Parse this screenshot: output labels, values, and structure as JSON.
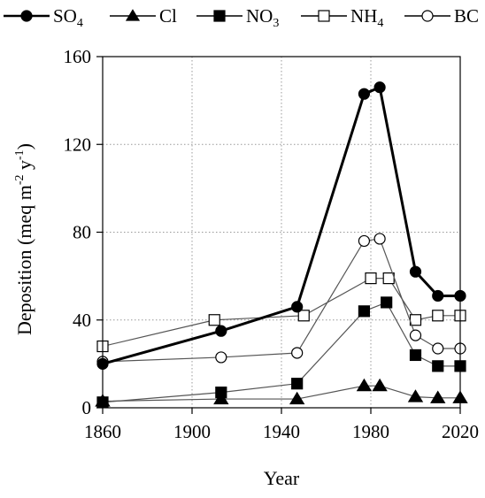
{
  "chart_data": {
    "type": "line",
    "xlabel": "Year",
    "ylabel": {
      "parts": [
        {
          "text": "Deposition (meq m",
          "style": "normal"
        },
        {
          "text": "-2",
          "style": "sup"
        },
        {
          "text": " y",
          "style": "normal"
        },
        {
          "text": "-1",
          "style": "sup"
        },
        {
          "text": ")",
          "style": "normal"
        }
      ]
    },
    "xlim": [
      1860,
      2020
    ],
    "ylim": [
      0,
      160
    ],
    "xticks": [
      1860,
      1900,
      1940,
      1980,
      2020
    ],
    "yticks": [
      0,
      40,
      80,
      120,
      160
    ],
    "grid": true,
    "legend_position": "top",
    "series": [
      {
        "name": "SO4",
        "name_parts": [
          {
            "text": "SO",
            "style": "normal"
          },
          {
            "text": "4",
            "style": "sub"
          }
        ],
        "marker": "circle",
        "filled": true,
        "line_width": 3,
        "line_color": "#000000",
        "x": [
          1860,
          1913,
          1947,
          1977,
          1984,
          2000,
          2010,
          2020
        ],
        "values": [
          20,
          35,
          46,
          143,
          146,
          62,
          51,
          51
        ]
      },
      {
        "name": "Cl",
        "name_parts": [
          {
            "text": "Cl",
            "style": "normal"
          }
        ],
        "marker": "triangle",
        "filled": true,
        "line_width": 1.2,
        "line_color": "#555555",
        "x": [
          1860,
          1913,
          1947,
          1977,
          1984,
          2000,
          2010,
          2020
        ],
        "values": [
          3,
          4,
          4,
          10,
          10,
          5,
          4.5,
          4.5
        ]
      },
      {
        "name": "NO3",
        "name_parts": [
          {
            "text": "NO",
            "style": "normal"
          },
          {
            "text": "3",
            "style": "sub"
          }
        ],
        "marker": "square",
        "filled": true,
        "line_width": 1.2,
        "line_color": "#555555",
        "x": [
          1860,
          1913,
          1947,
          1977,
          1987,
          2000,
          2010,
          2020
        ],
        "values": [
          2.5,
          7,
          11,
          44,
          48,
          24,
          19,
          19
        ]
      },
      {
        "name": "NH4",
        "name_parts": [
          {
            "text": "NH",
            "style": "normal"
          },
          {
            "text": "4",
            "style": "sub"
          }
        ],
        "marker": "square",
        "filled": false,
        "line_width": 1.2,
        "line_color": "#555555",
        "x": [
          1860,
          1910,
          1950,
          1980,
          1988,
          2000,
          2010,
          2020
        ],
        "values": [
          28,
          40,
          42,
          59,
          59,
          40,
          42,
          42
        ]
      },
      {
        "name": "BC",
        "name_parts": [
          {
            "text": "BC",
            "style": "normal"
          }
        ],
        "marker": "circle",
        "filled": false,
        "line_width": 1.2,
        "line_color": "#555555",
        "x": [
          1860,
          1913,
          1947,
          1977,
          1984,
          2000,
          2010,
          2020
        ],
        "values": [
          21,
          23,
          25,
          76,
          77,
          33,
          27,
          27
        ]
      }
    ]
  }
}
